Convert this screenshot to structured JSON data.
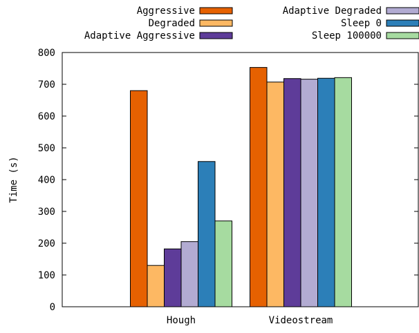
{
  "chart_data": {
    "type": "bar",
    "title": "",
    "xlabel": "",
    "ylabel": "Time (s)",
    "ylim": [
      0,
      800
    ],
    "yticks": [
      0,
      100,
      200,
      300,
      400,
      500,
      600,
      700,
      800
    ],
    "grid": false,
    "legend_position": "top-right",
    "categories": [
      "Hough",
      "Videostream"
    ],
    "series": [
      {
        "name": "Aggressive",
        "color": "#e66101",
        "values": [
          680,
          753
        ]
      },
      {
        "name": "Degraded",
        "color": "#fdb863",
        "values": [
          130,
          707
        ]
      },
      {
        "name": "Adaptive Aggressive",
        "color": "#5e3c99",
        "values": [
          182,
          718
        ]
      },
      {
        "name": "Adaptive Degraded",
        "color": "#b2abd2",
        "values": [
          205,
          716
        ]
      },
      {
        "name": "Sleep 0",
        "color": "#2c7fb8",
        "values": [
          457,
          719
        ]
      },
      {
        "name": "Sleep 100000",
        "color": "#a6dba0",
        "values": [
          270,
          721
        ]
      }
    ]
  }
}
